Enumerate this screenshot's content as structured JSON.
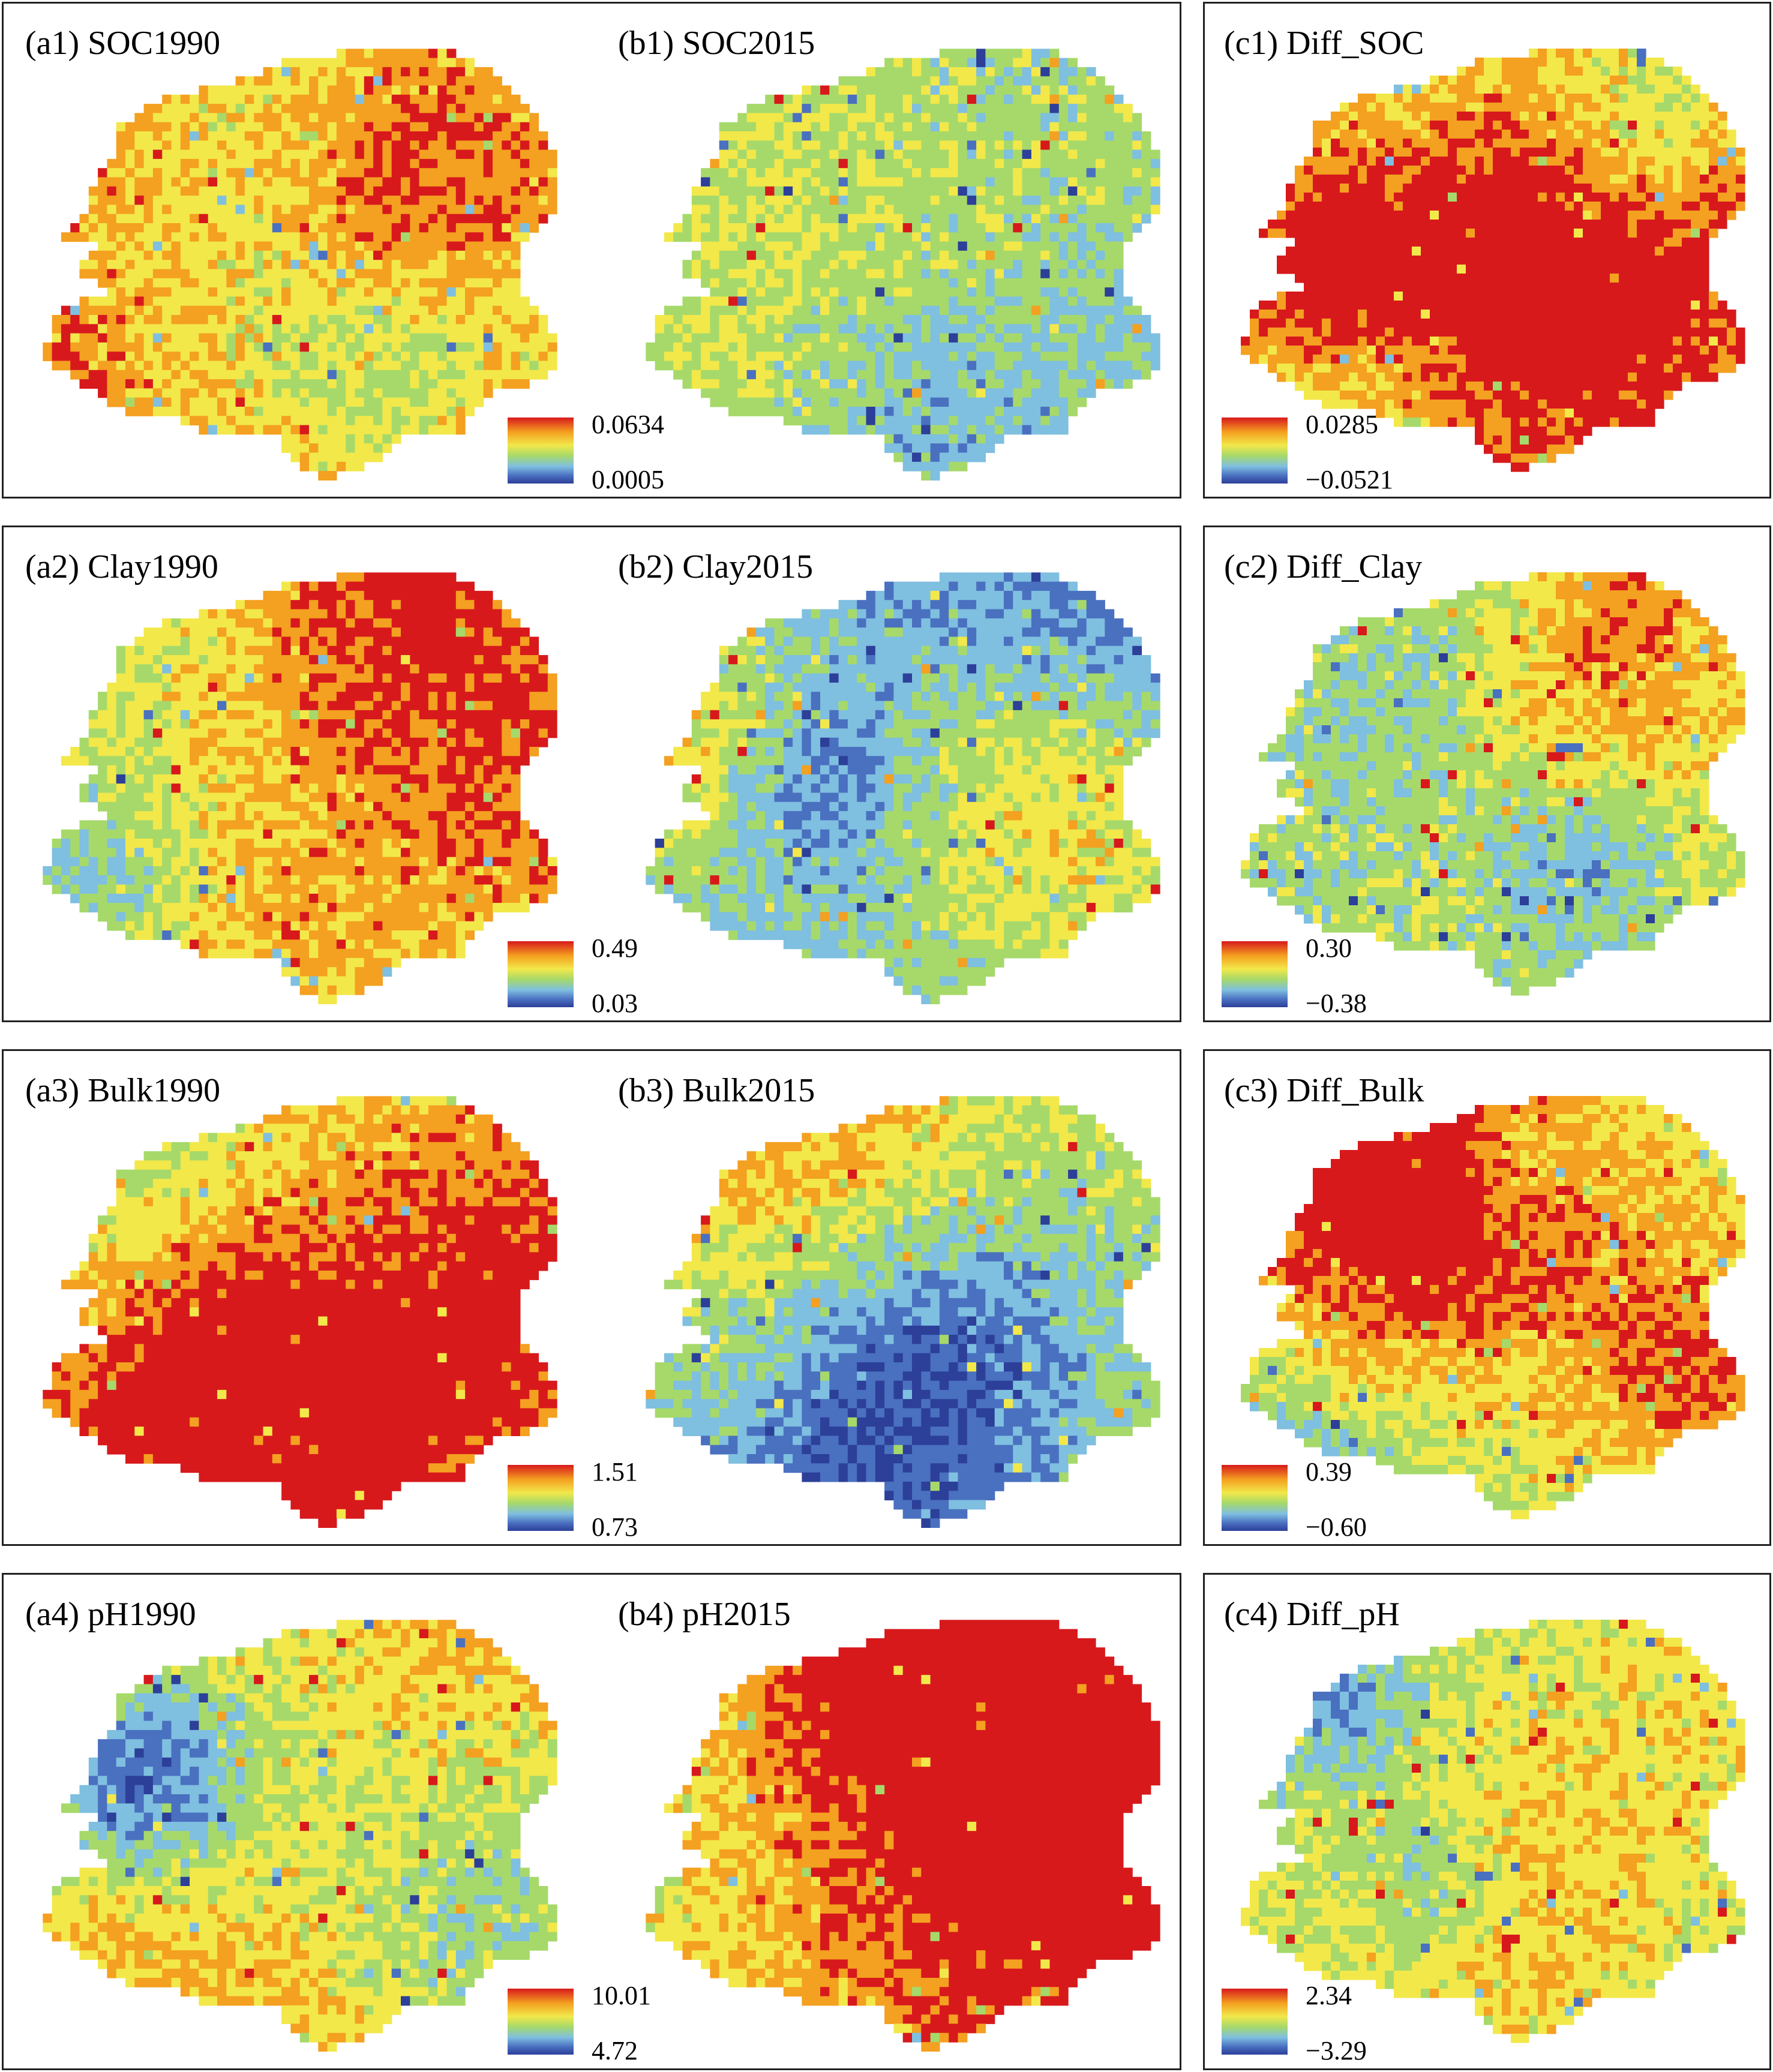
{
  "palette": [
    "#2c3f99",
    "#4a70c0",
    "#7fbfe0",
    "#a6d96a",
    "#f2e84a",
    "#f4a020",
    "#d7191c"
  ],
  "rows": [
    {
      "maps": [
        {
          "label": "(a1) SOC1990",
          "bias": 0.15
        },
        {
          "label": "(b1) SOC2015",
          "bias": -0.12
        }
      ],
      "legend_ab": {
        "max": "0.0634",
        "min": "0.0005"
      },
      "diff": {
        "label": "(c1) Diff_SOC",
        "bias": 0.18
      },
      "legend_c": {
        "max": "0.0285",
        "min": "−0.0521"
      }
    },
    {
      "maps": [
        {
          "label": "(a2) Clay1990",
          "bias": 0.1
        },
        {
          "label": "(b2) Clay2015",
          "bias": -0.15
        }
      ],
      "legend_ab": {
        "max": "0.49",
        "min": "0.03"
      },
      "diff": {
        "label": "(c2) Diff_Clay",
        "bias": 0.0
      },
      "legend_c": {
        "max": "0.30",
        "min": "−0.38"
      }
    },
    {
      "maps": [
        {
          "label": "(a3) Bulk1990",
          "bias": 0.25
        },
        {
          "label": "(b3) Bulk2015",
          "bias": 0.0
        }
      ],
      "legend_ab": {
        "max": "1.51",
        "min": "0.73"
      },
      "diff": {
        "label": "(c3) Diff_Bulk",
        "bias": 0.02
      },
      "legend_c": {
        "max": "0.39",
        "min": "−0.60"
      }
    },
    {
      "maps": [
        {
          "label": "(a4) pH1990",
          "bias": 0.28
        },
        {
          "label": "(b4) pH2015",
          "bias": 0.08
        }
      ],
      "legend_ab": {
        "max": "10.01",
        "min": "4.72"
      },
      "diff": {
        "label": "(c4) Diff_pH",
        "bias": 0.02
      },
      "legend_c": {
        "max": "2.34",
        "min": "−3.29"
      }
    }
  ]
}
